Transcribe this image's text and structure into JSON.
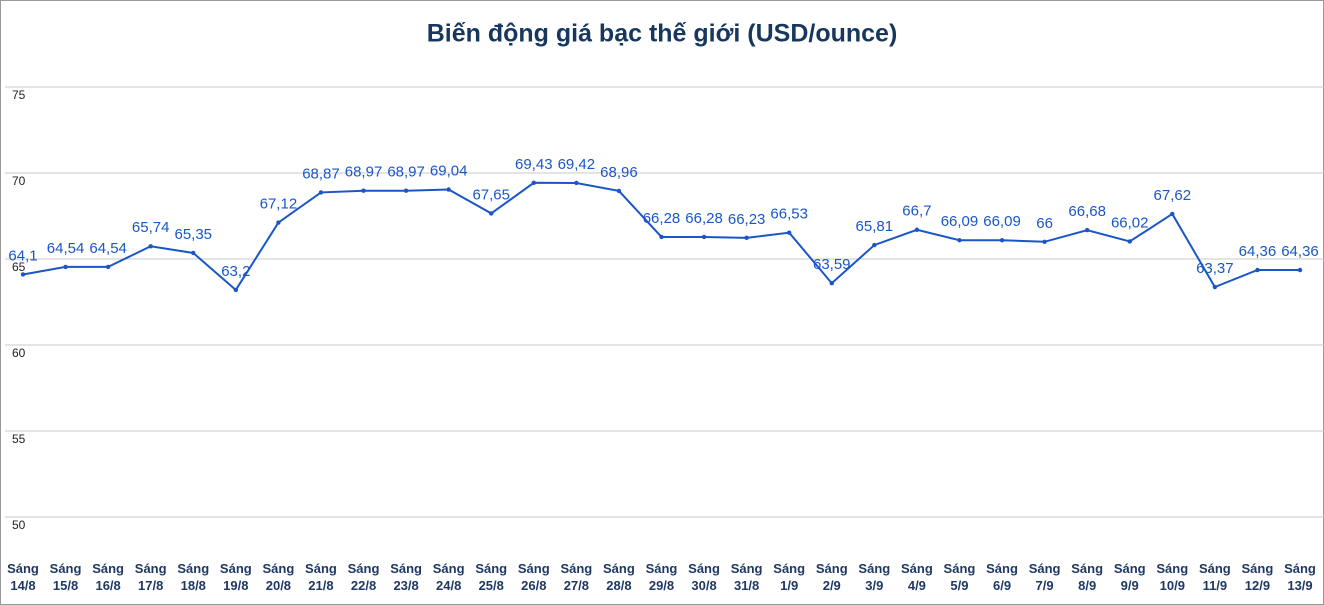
{
  "chart_data": {
    "type": "line",
    "title": "Biến động giá bạc thế giới (USD/ounce)",
    "categories": [
      "Sáng 14/8",
      "Sáng 15/8",
      "Sáng 16/8",
      "Sáng 17/8",
      "Sáng 18/8",
      "Sáng 19/8",
      "Sáng 20/8",
      "Sáng 21/8",
      "Sáng 22/8",
      "Sáng 23/8",
      "Sáng 24/8",
      "Sáng 25/8",
      "Sáng 26/8",
      "Sáng 27/8",
      "Sáng 28/8",
      "Sáng 29/8",
      "Sáng 30/8",
      "Sáng 31/8",
      "Sáng 1/9",
      "Sáng 2/9",
      "Sáng 3/9",
      "Sáng 4/9",
      "Sáng 5/9",
      "Sáng 6/9",
      "Sáng 7/9",
      "Sáng 8/9",
      "Sáng 9/9",
      "Sáng 10/9",
      "Sáng 11/9",
      "Sáng 12/9",
      "Sáng 13/9"
    ],
    "values": [
      64.1,
      64.54,
      64.54,
      65.74,
      65.35,
      63.2,
      67.12,
      68.87,
      68.97,
      68.97,
      69.04,
      67.65,
      69.43,
      69.42,
      68.96,
      66.28,
      66.28,
      66.23,
      66.53,
      63.59,
      65.81,
      66.7,
      66.09,
      66.09,
      66,
      66.68,
      66.02,
      67.62,
      63.37,
      64.36,
      64.36
    ],
    "value_labels": [
      "64,1",
      "64,54",
      "64,54",
      "65,74",
      "65,35",
      "63,2",
      "67,12",
      "68,87",
      "68,97",
      "68,97",
      "69,04",
      "67,65",
      "69,43",
      "69,42",
      "68,96",
      "66,28",
      "66,28",
      "66,23",
      "66,53",
      "63,59",
      "65,81",
      "66,7",
      "66,09",
      "66,09",
      "66",
      "66,68",
      "66,02",
      "67,62",
      "63,37",
      "64,36",
      "64,36"
    ],
    "color": "#1a56c8",
    "ylim": [
      50,
      75
    ],
    "yticks": [
      50,
      55,
      60,
      65,
      70,
      75
    ],
    "grid": true
  }
}
